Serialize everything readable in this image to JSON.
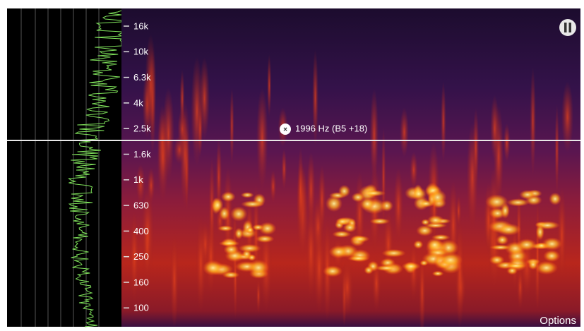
{
  "axis_labels": [
    "16k",
    "10k",
    "6.3k",
    "4k",
    "2.5k",
    "1.6k",
    "1k",
    "630",
    "400",
    "250",
    "160",
    "100"
  ],
  "cursor_readout": "1996 Hz (B5 +18)",
  "options_button": "Options"
}
